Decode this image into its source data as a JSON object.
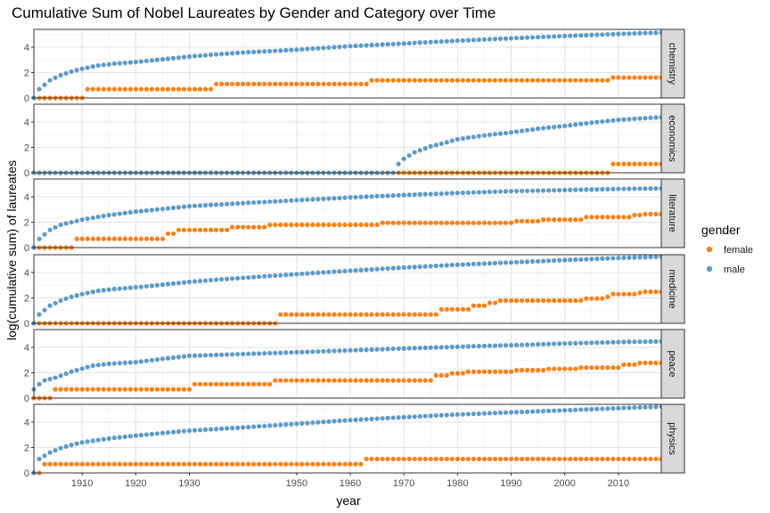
{
  "chart_data": {
    "type": "scatter",
    "title": "Cumulative Sum of Nobel Laureates by Gender and Category over Time",
    "xlabel": "year",
    "ylabel": "log(cumulative sum) of laureates",
    "xlim": [
      1901,
      2018
    ],
    "ylim": [
      0,
      5.4
    ],
    "x_ticks": [
      1910,
      1920,
      1930,
      1950,
      1960,
      1970,
      1980,
      1990,
      2000,
      2010
    ],
    "y_ticks": [
      0,
      2,
      4
    ],
    "grid": true,
    "facets": [
      "chemistry",
      "economics",
      "literature",
      "medicine",
      "peace",
      "physics"
    ],
    "legend": {
      "title": "gender",
      "position": "right",
      "items": [
        {
          "label": "female",
          "color": "#ff7f0e"
        },
        {
          "label": "male",
          "color": "#5b9bc8"
        }
      ]
    },
    "series": [
      {
        "facet": "chemistry",
        "gender": "female",
        "color": "#ff7f0e",
        "step_points": [
          [
            1901,
            0
          ],
          [
            1911,
            0.69
          ],
          [
            1935,
            1.1
          ],
          [
            1964,
            1.39
          ],
          [
            2009,
            1.61
          ]
        ],
        "x_end": 2018
      },
      {
        "facet": "chemistry",
        "gender": "male",
        "color": "#5b9bc8",
        "curve_points": [
          [
            1901,
            0
          ],
          [
            1902,
            0.69
          ],
          [
            1904,
            1.39
          ],
          [
            1906,
            1.79
          ],
          [
            1908,
            2.08
          ],
          [
            1910,
            2.3
          ],
          [
            1913,
            2.56
          ],
          [
            1916,
            2.7
          ],
          [
            1920,
            2.83
          ],
          [
            1925,
            3.04
          ],
          [
            1930,
            3.26
          ],
          [
            1935,
            3.43
          ],
          [
            1940,
            3.58
          ],
          [
            1950,
            3.8
          ],
          [
            1960,
            4.08
          ],
          [
            1970,
            4.29
          ],
          [
            1980,
            4.51
          ],
          [
            1990,
            4.7
          ],
          [
            2000,
            4.88
          ],
          [
            2010,
            5.04
          ],
          [
            2018,
            5.15
          ]
        ]
      },
      {
        "facet": "economics",
        "gender": "female",
        "color": "#ff7f0e",
        "step_points": [
          [
            1901,
            0
          ],
          [
            2009,
            0.69
          ]
        ],
        "x_end": 2018
      },
      {
        "facet": "economics",
        "gender": "male",
        "color": "#5b9bc8",
        "curve_points": [
          [
            1901,
            0
          ],
          [
            1968,
            0
          ],
          [
            1969,
            0.69
          ],
          [
            1970,
            1.1
          ],
          [
            1972,
            1.61
          ],
          [
            1975,
            2.08
          ],
          [
            1978,
            2.4
          ],
          [
            1980,
            2.64
          ],
          [
            1985,
            2.94
          ],
          [
            1990,
            3.18
          ],
          [
            1995,
            3.47
          ],
          [
            2000,
            3.69
          ],
          [
            2005,
            3.95
          ],
          [
            2010,
            4.17
          ],
          [
            2018,
            4.38
          ]
        ]
      },
      {
        "facet": "literature",
        "gender": "female",
        "color": "#ff7f0e",
        "step_points": [
          [
            1901,
            0
          ],
          [
            1909,
            0.69
          ],
          [
            1926,
            1.1
          ],
          [
            1928,
            1.39
          ],
          [
            1938,
            1.61
          ],
          [
            1945,
            1.79
          ],
          [
            1966,
            1.95
          ],
          [
            1991,
            2.08
          ],
          [
            1996,
            2.2
          ],
          [
            2004,
            2.4
          ],
          [
            2013,
            2.56
          ],
          [
            2015,
            2.64
          ]
        ],
        "x_end": 2018
      },
      {
        "facet": "literature",
        "gender": "male",
        "color": "#5b9bc8",
        "curve_points": [
          [
            1901,
            0
          ],
          [
            1902,
            0.69
          ],
          [
            1904,
            1.39
          ],
          [
            1906,
            1.79
          ],
          [
            1910,
            2.2
          ],
          [
            1915,
            2.56
          ],
          [
            1920,
            2.83
          ],
          [
            1925,
            3.04
          ],
          [
            1930,
            3.26
          ],
          [
            1940,
            3.5
          ],
          [
            1950,
            3.73
          ],
          [
            1960,
            3.95
          ],
          [
            1970,
            4.14
          ],
          [
            1980,
            4.3
          ],
          [
            1990,
            4.44
          ],
          [
            2000,
            4.53
          ],
          [
            2010,
            4.62
          ],
          [
            2018,
            4.66
          ]
        ]
      },
      {
        "facet": "medicine",
        "gender": "female",
        "color": "#ff7f0e",
        "step_points": [
          [
            1901,
            0
          ],
          [
            1947,
            0.69
          ],
          [
            1977,
            1.1
          ],
          [
            1983,
            1.39
          ],
          [
            1986,
            1.61
          ],
          [
            1988,
            1.79
          ],
          [
            2004,
            1.95
          ],
          [
            2008,
            2.08
          ],
          [
            2009,
            2.3
          ],
          [
            2014,
            2.4
          ],
          [
            2015,
            2.48
          ]
        ],
        "x_end": 2018
      },
      {
        "facet": "medicine",
        "gender": "male",
        "color": "#5b9bc8",
        "curve_points": [
          [
            1901,
            0
          ],
          [
            1902,
            0.69
          ],
          [
            1904,
            1.39
          ],
          [
            1906,
            1.79
          ],
          [
            1908,
            2.08
          ],
          [
            1910,
            2.3
          ],
          [
            1913,
            2.56
          ],
          [
            1916,
            2.7
          ],
          [
            1920,
            2.83
          ],
          [
            1925,
            3.04
          ],
          [
            1930,
            3.26
          ],
          [
            1935,
            3.43
          ],
          [
            1940,
            3.58
          ],
          [
            1950,
            3.87
          ],
          [
            1960,
            4.14
          ],
          [
            1970,
            4.39
          ],
          [
            1980,
            4.61
          ],
          [
            1990,
            4.79
          ],
          [
            2000,
            4.98
          ],
          [
            2010,
            5.14
          ],
          [
            2018,
            5.25
          ]
        ]
      },
      {
        "facet": "peace",
        "gender": "female",
        "color": "#ff7f0e",
        "step_points": [
          [
            1901,
            0
          ],
          [
            1905,
            0.69
          ],
          [
            1931,
            1.1
          ],
          [
            1946,
            1.39
          ],
          [
            1976,
            1.79
          ],
          [
            1979,
            1.95
          ],
          [
            1982,
            2.08
          ],
          [
            1991,
            2.2
          ],
          [
            1997,
            2.3
          ],
          [
            2003,
            2.4
          ],
          [
            2011,
            2.64
          ],
          [
            2014,
            2.77
          ]
        ],
        "x_end": 2018
      },
      {
        "facet": "peace",
        "gender": "male",
        "color": "#5b9bc8",
        "curve_points": [
          [
            1901,
            0.69
          ],
          [
            1902,
            1.1
          ],
          [
            1903,
            1.39
          ],
          [
            1905,
            1.61
          ],
          [
            1908,
            2.08
          ],
          [
            1912,
            2.56
          ],
          [
            1915,
            2.7
          ],
          [
            1920,
            2.83
          ],
          [
            1925,
            3.09
          ],
          [
            1930,
            3.33
          ],
          [
            1940,
            3.47
          ],
          [
            1950,
            3.61
          ],
          [
            1960,
            3.76
          ],
          [
            1970,
            3.91
          ],
          [
            1980,
            4.04
          ],
          [
            1990,
            4.17
          ],
          [
            2000,
            4.3
          ],
          [
            2010,
            4.41
          ],
          [
            2018,
            4.47
          ]
        ]
      },
      {
        "facet": "physics",
        "gender": "female",
        "color": "#ff7f0e",
        "step_points": [
          [
            1901,
            0
          ],
          [
            1903,
            0.69
          ],
          [
            1963,
            1.1
          ]
        ],
        "x_end": 2018
      },
      {
        "facet": "physics",
        "gender": "male",
        "color": "#5b9bc8",
        "curve_points": [
          [
            1901,
            0
          ],
          [
            1902,
            1.1
          ],
          [
            1904,
            1.61
          ],
          [
            1906,
            1.95
          ],
          [
            1908,
            2.2
          ],
          [
            1910,
            2.4
          ],
          [
            1915,
            2.71
          ],
          [
            1920,
            2.94
          ],
          [
            1925,
            3.14
          ],
          [
            1930,
            3.33
          ],
          [
            1940,
            3.58
          ],
          [
            1950,
            3.87
          ],
          [
            1960,
            4.16
          ],
          [
            1970,
            4.39
          ],
          [
            1980,
            4.6
          ],
          [
            1990,
            4.77
          ],
          [
            2000,
            4.93
          ],
          [
            2010,
            5.1
          ],
          [
            2018,
            5.22
          ]
        ]
      }
    ]
  }
}
